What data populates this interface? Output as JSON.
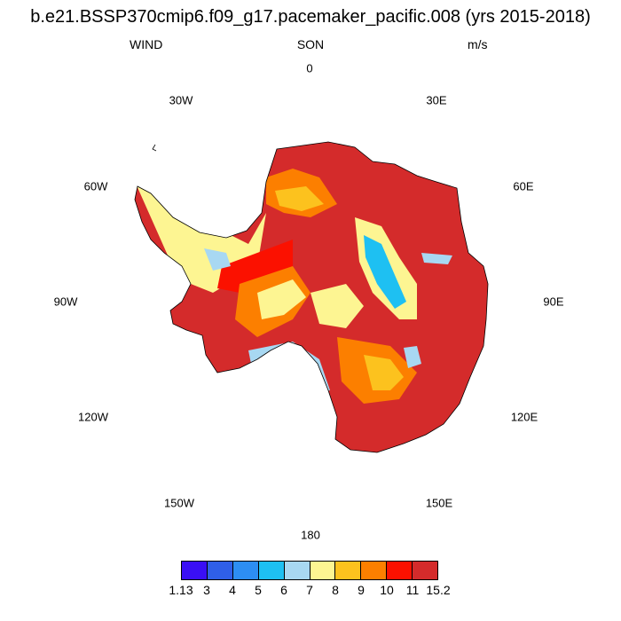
{
  "title": "b.e21.BSSP370cmip6.f09_g17.pacemaker_pacific.008 (yrs 2015-2018)",
  "subtitle": {
    "left": "WIND",
    "center": "SON",
    "right": "m/s"
  },
  "longitude_labels": {
    "n0": "0",
    "n30e": "30E",
    "n60e": "60E",
    "n90e": "90E",
    "n120e": "120E",
    "n150e": "150E",
    "n180": "180",
    "n150w": "150W",
    "n120w": "120W",
    "n90w": "90W",
    "n60w": "60W",
    "n30w": "30W"
  },
  "colorbar": {
    "colors": [
      "#3a0ff5",
      "#2f5fe8",
      "#2d8ef3",
      "#1ec0f2",
      "#a8d8f2",
      "#fdf592",
      "#fcc21e",
      "#fc7f00",
      "#fb1100",
      "#d42b2b"
    ],
    "labels": [
      "1.13",
      "3",
      "4",
      "5",
      "6",
      "7",
      "8",
      "9",
      "10",
      "11",
      "15.2"
    ]
  }
}
